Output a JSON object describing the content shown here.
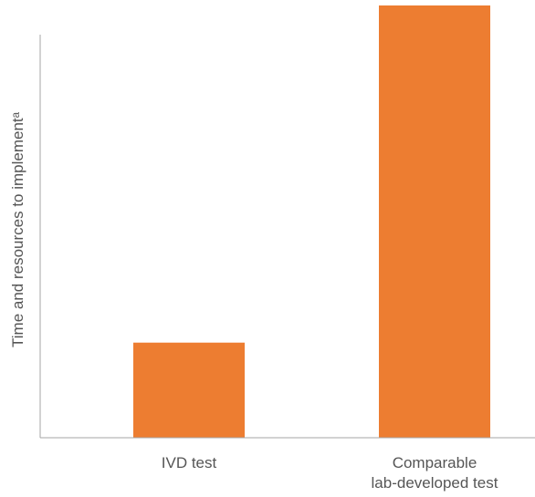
{
  "chart_data": {
    "type": "bar",
    "title": "",
    "xlabel": "",
    "ylabel": "Time and resources to implementᵃ",
    "categories": [
      "IVD test",
      "Comparable lab-developed test"
    ],
    "category_label_lines": [
      [
        "IVD test"
      ],
      [
        "Comparable",
        "lab-developed test"
      ]
    ],
    "values": [
      22,
      100
    ],
    "value_unit": "relative",
    "ylim": [
      0,
      100
    ],
    "grid": false,
    "legend": "none",
    "bar_color": "#ED7D31",
    "axis_color": "#A6A6A6",
    "text_color": "#555555"
  }
}
